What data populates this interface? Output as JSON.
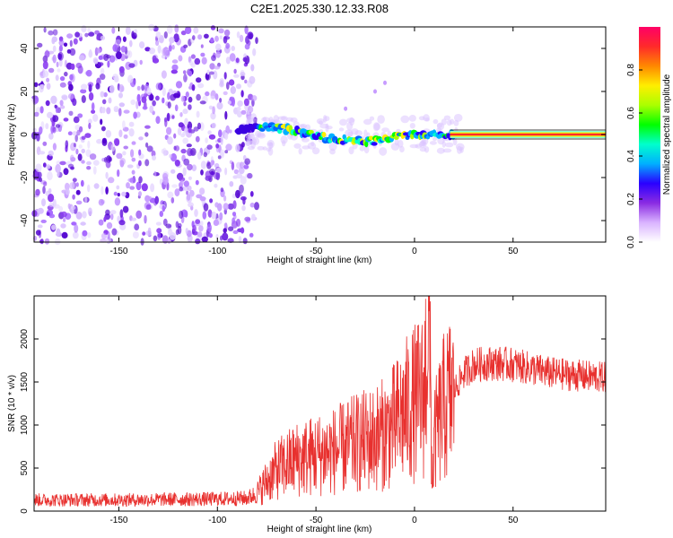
{
  "title": "C2E1.2025.330.12.33.R08",
  "chart_data": [
    {
      "type": "heatmap",
      "xlabel": "Height of straight line (km)",
      "ylabel": "Frequency (Hz)",
      "xlim": [
        -193,
        97
      ],
      "ylim": [
        -50,
        50
      ],
      "x_ticks": [
        -150,
        -100,
        -50,
        0,
        50
      ],
      "y_ticks": [
        40,
        20,
        0,
        -20,
        -40
      ],
      "x_tick_labels": [
        "-150",
        "-100",
        "-50",
        "0",
        "50"
      ],
      "y_tick_labels": [
        "40",
        "20",
        "0",
        "-20",
        "-40"
      ],
      "colorbar": {
        "label": "Normalized spectral amplitude",
        "range": [
          0,
          1
        ],
        "ticks": [
          0.0,
          0.2,
          0.4,
          0.6,
          0.8
        ],
        "tick_labels": [
          "0.0",
          "0.2",
          "0.4",
          "0.6",
          "0.8"
        ],
        "colors": [
          "#ffffff",
          "#d9b3ff",
          "#8a2be2",
          "#2a00ff",
          "#00b0ff",
          "#00ffcc",
          "#00ff00",
          "#aaff00",
          "#ffee00",
          "#ff8800",
          "#ff2a2a",
          "#ff0066"
        ]
      },
      "noise_region": {
        "x": [
          -193,
          -80
        ],
        "y": [
          -50,
          50
        ]
      },
      "ridge": [
        [
          -90,
          2
        ],
        [
          -80,
          4
        ],
        [
          -70,
          3
        ],
        [
          -60,
          2
        ],
        [
          -50,
          -1
        ],
        [
          -40,
          -2
        ],
        [
          -30,
          -3
        ],
        [
          -20,
          -3
        ],
        [
          -10,
          -1
        ],
        [
          0,
          0
        ],
        [
          5,
          0
        ],
        [
          10,
          0
        ],
        [
          20,
          0
        ],
        [
          50,
          0
        ],
        [
          97,
          0
        ]
      ],
      "streak": [
        [
          -35,
          12
        ],
        [
          -20,
          20
        ],
        [
          -15,
          24
        ]
      ]
    },
    {
      "type": "line",
      "xlabel": "Height of straight line (km)",
      "ylabel": "SNR (10 * v/v)",
      "xlim": [
        -193,
        97
      ],
      "ylim": [
        0,
        2500
      ],
      "x_ticks": [
        -150,
        -100,
        -50,
        0,
        50
      ],
      "y_ticks": [
        0,
        500,
        1000,
        1500,
        2000
      ],
      "x_tick_labels": [
        "-150",
        "-100",
        "-50",
        "0",
        "50"
      ],
      "y_tick_labels": [
        "0",
        "500",
        "1000",
        "1500",
        "2000"
      ],
      "color": "#e8302e",
      "envelope": {
        "x": [
          -193,
          -150,
          -100,
          -85,
          -80,
          -75,
          -70,
          -60,
          -50,
          -40,
          -30,
          -20,
          -15,
          -10,
          -5,
          0,
          3,
          5,
          7,
          8,
          9,
          10,
          12,
          15,
          20,
          25,
          30,
          40,
          50,
          60,
          70,
          80,
          90,
          97
        ],
        "y": [
          130,
          130,
          140,
          150,
          200,
          350,
          480,
          600,
          650,
          700,
          780,
          850,
          900,
          1000,
          1150,
          1250,
          1300,
          1350,
          2350,
          1700,
          250,
          800,
          1000,
          1200,
          1400,
          1600,
          1700,
          1720,
          1700,
          1650,
          1600,
          1580,
          1560,
          1550
        ]
      }
    }
  ]
}
